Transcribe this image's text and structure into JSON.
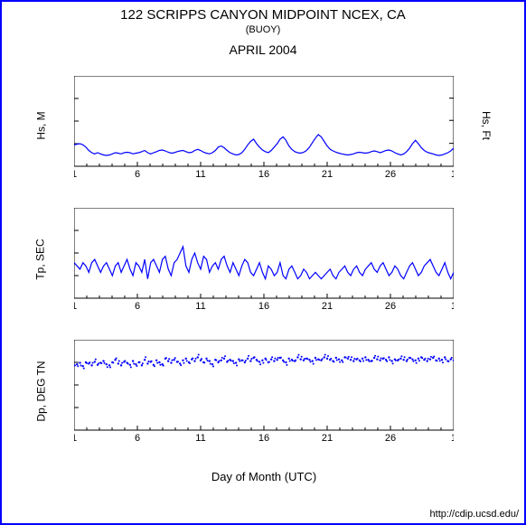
{
  "title": "122 SCRIPPS CANYON MIDPOINT NCEX, CA",
  "subtitle": "(BUOY)",
  "month": "APRIL 2004",
  "xlabel": "Day of Month (UTC)",
  "footer": "http://cdip.ucsd.edu/",
  "frame_color": "#0000ff",
  "line_color": "#0000ff",
  "background_color": "#ffffff",
  "text_color": "#000000",
  "x_ticks": [
    1,
    6,
    11,
    16,
    21,
    26,
    1
  ],
  "x_range": [
    1,
    31
  ],
  "chart1": {
    "ylabel_left": "Hs, M",
    "ylabel_right": "Hs, Ft",
    "ylim_left": [
      0,
      4
    ],
    "yticks_left": [
      0,
      1,
      2,
      3,
      4
    ],
    "yticks_right": [
      3.3,
      6.6,
      9.8,
      13
    ],
    "data": [
      0.95,
      0.98,
      1.0,
      0.95,
      0.85,
      0.7,
      0.6,
      0.55,
      0.6,
      0.55,
      0.5,
      0.48,
      0.5,
      0.55,
      0.6,
      0.58,
      0.55,
      0.6,
      0.62,
      0.6,
      0.55,
      0.58,
      0.6,
      0.65,
      0.7,
      0.6,
      0.55,
      0.6,
      0.65,
      0.7,
      0.72,
      0.68,
      0.62,
      0.58,
      0.6,
      0.65,
      0.68,
      0.7,
      0.65,
      0.6,
      0.62,
      0.7,
      0.75,
      0.7,
      0.62,
      0.58,
      0.55,
      0.6,
      0.7,
      0.85,
      0.9,
      0.82,
      0.7,
      0.6,
      0.55,
      0.5,
      0.52,
      0.6,
      0.75,
      0.95,
      1.1,
      1.2,
      1.0,
      0.85,
      0.72,
      0.65,
      0.6,
      0.7,
      0.85,
      1.0,
      1.2,
      1.3,
      1.15,
      0.9,
      0.75,
      0.65,
      0.6,
      0.58,
      0.62,
      0.7,
      0.85,
      1.05,
      1.25,
      1.4,
      1.3,
      1.1,
      0.9,
      0.75,
      0.68,
      0.62,
      0.58,
      0.55,
      0.52,
      0.5,
      0.52,
      0.55,
      0.6,
      0.62,
      0.6,
      0.58,
      0.6,
      0.65,
      0.68,
      0.65,
      0.6,
      0.65,
      0.7,
      0.72,
      0.68,
      0.6,
      0.55,
      0.5,
      0.55,
      0.65,
      0.8,
      1.0,
      1.15,
      1.0,
      0.82,
      0.7,
      0.62,
      0.58,
      0.55,
      0.5,
      0.48,
      0.5,
      0.55,
      0.6,
      0.68,
      0.8
    ]
  },
  "chart2": {
    "ylabel": "Tp, SEC",
    "ylim": [
      0,
      28
    ],
    "yticks": [
      0,
      7,
      14,
      21,
      28
    ],
    "data": [
      11,
      10,
      9,
      11,
      10,
      8,
      11,
      12,
      10,
      8,
      10,
      11,
      9,
      7,
      10,
      11,
      8,
      10,
      12,
      9,
      7,
      11,
      10,
      8,
      12,
      6,
      11,
      12,
      10,
      8,
      12,
      13,
      9,
      7,
      11,
      12,
      14,
      16,
      10,
      8,
      12,
      14,
      11,
      9,
      13,
      12,
      8,
      10,
      11,
      9,
      12,
      13,
      10,
      8,
      11,
      9,
      7,
      10,
      12,
      11,
      8,
      7,
      9,
      11,
      8,
      6,
      10,
      9,
      7,
      8,
      11,
      7,
      6,
      9,
      10,
      8,
      6,
      7,
      9,
      8,
      6,
      7,
      8,
      7,
      6,
      7,
      8,
      9,
      7,
      6,
      8,
      9,
      10,
      8,
      7,
      9,
      10,
      8,
      7,
      9,
      10,
      11,
      9,
      8,
      10,
      11,
      9,
      7,
      8,
      10,
      9,
      7,
      6,
      8,
      10,
      11,
      9,
      7,
      8,
      10,
      11,
      12,
      10,
      8,
      7,
      9,
      11,
      8,
      6,
      8
    ]
  },
  "chart3": {
    "ylabel": "Dp, DEG TN",
    "ylim": [
      0,
      360
    ],
    "yticks": [
      0,
      90,
      180,
      270,
      360
    ],
    "data": [
      258,
      262,
      268,
      255,
      270,
      265,
      258,
      272,
      260,
      268,
      275,
      262,
      258,
      270,
      280,
      265,
      258,
      272,
      268,
      260,
      275,
      262,
      270,
      258,
      280,
      265,
      272,
      260,
      278,
      270,
      262,
      285,
      275,
      268,
      280,
      272,
      265,
      278,
      285,
      270,
      282,
      275,
      290,
      278,
      270,
      285,
      275,
      262,
      280,
      270,
      278,
      285,
      272,
      280,
      275,
      268,
      282,
      278,
      270,
      285,
      275,
      288,
      280,
      272,
      278,
      285,
      270,
      282,
      275,
      280,
      288,
      278,
      270,
      285,
      280,
      275,
      290,
      282,
      278,
      285,
      280,
      275,
      288,
      282,
      278,
      290,
      285,
      280,
      275,
      288,
      282,
      278,
      290,
      285,
      280,
      275,
      282,
      278,
      285,
      290,
      280,
      275,
      288,
      282,
      278,
      285,
      280,
      290,
      275,
      282,
      278,
      285,
      280,
      275,
      288,
      282,
      278,
      285,
      290,
      280,
      275,
      282,
      288,
      278,
      285,
      280,
      290,
      275,
      282,
      278
    ]
  }
}
